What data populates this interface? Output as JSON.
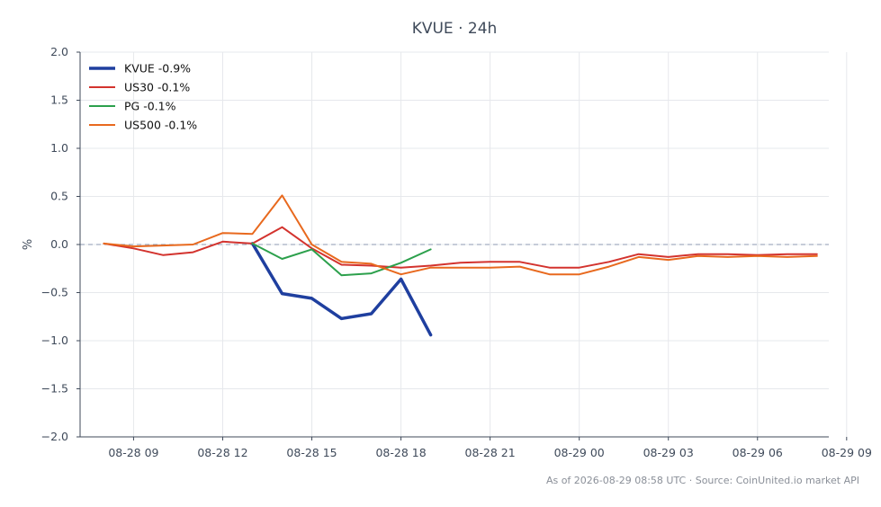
{
  "chart_data": {
    "type": "line",
    "title": "KVUE · 24h",
    "ylabel": "%",
    "xlabel": "",
    "ylim": [
      -2.0,
      2.0
    ],
    "xlim": [
      7.2,
      32.4
    ],
    "y_ticks": [
      2.0,
      1.5,
      1.0,
      0.5,
      0.0,
      -0.5,
      -1.0,
      -1.5,
      -2.0
    ],
    "y_tick_labels": [
      "2.0",
      "1.5",
      "1.0",
      "0.5",
      "0.0",
      "−0.5",
      "−1.0",
      "−1.5",
      "−2.0"
    ],
    "x_ticks": [
      9,
      12,
      15,
      18,
      21,
      24,
      27,
      30,
      33
    ],
    "x_tick_labels": [
      "08-28 09",
      "08-28 12",
      "08-28 15",
      "08-28 18",
      "08-28 21",
      "08-29 00",
      "08-29 03",
      "08-29 06",
      "08-29 09"
    ],
    "x_unit_note": "hours from 2026-08-28 00:00 UTC",
    "grid": true,
    "reference_line": 0.0,
    "legend_position": "top-left",
    "series": [
      {
        "name": "KVUE -0.9%",
        "color": "#1f3f9f",
        "width": 3.5,
        "x": [
          13,
          14,
          15,
          16,
          17,
          18,
          19
        ],
        "y": [
          0.01,
          -0.51,
          -0.56,
          -0.77,
          -0.72,
          -0.36,
          -0.94
        ]
      },
      {
        "name": "US30 -0.1%",
        "color": "#d3332e",
        "width": 2,
        "x": [
          8,
          9,
          10,
          11,
          12,
          13,
          14,
          15,
          16,
          17,
          18,
          19,
          20,
          21,
          22,
          23,
          24,
          25,
          26,
          27,
          28,
          29,
          30,
          31,
          32
        ],
        "y": [
          0.01,
          -0.04,
          -0.11,
          -0.08,
          0.03,
          0.01,
          0.18,
          -0.04,
          -0.21,
          -0.22,
          -0.24,
          -0.22,
          -0.19,
          -0.18,
          -0.18,
          -0.24,
          -0.24,
          -0.18,
          -0.1,
          -0.13,
          -0.1,
          -0.1,
          -0.11,
          -0.1,
          -0.1
        ]
      },
      {
        "name": "PG -0.1%",
        "color": "#2ca04c",
        "width": 2,
        "x": [
          13,
          14,
          15,
          16,
          17,
          18,
          19
        ],
        "y": [
          0.01,
          -0.15,
          -0.05,
          -0.32,
          -0.3,
          -0.19,
          -0.05
        ]
      },
      {
        "name": "US500 -0.1%",
        "color": "#e8691e",
        "width": 2,
        "x": [
          8,
          9,
          10,
          11,
          12,
          13,
          14,
          15,
          16,
          17,
          18,
          19,
          20,
          21,
          22,
          23,
          24,
          25,
          26,
          27,
          28,
          29,
          30,
          31,
          32
        ],
        "y": [
          0.01,
          -0.02,
          -0.01,
          0.0,
          0.12,
          0.11,
          0.51,
          0.0,
          -0.18,
          -0.2,
          -0.31,
          -0.24,
          -0.24,
          -0.24,
          -0.23,
          -0.31,
          -0.31,
          -0.23,
          -0.13,
          -0.16,
          -0.12,
          -0.13,
          -0.12,
          -0.13,
          -0.12
        ]
      }
    ],
    "footer": "As of 2026-08-29 08:58 UTC · Source: CoinUnited.io market API"
  }
}
